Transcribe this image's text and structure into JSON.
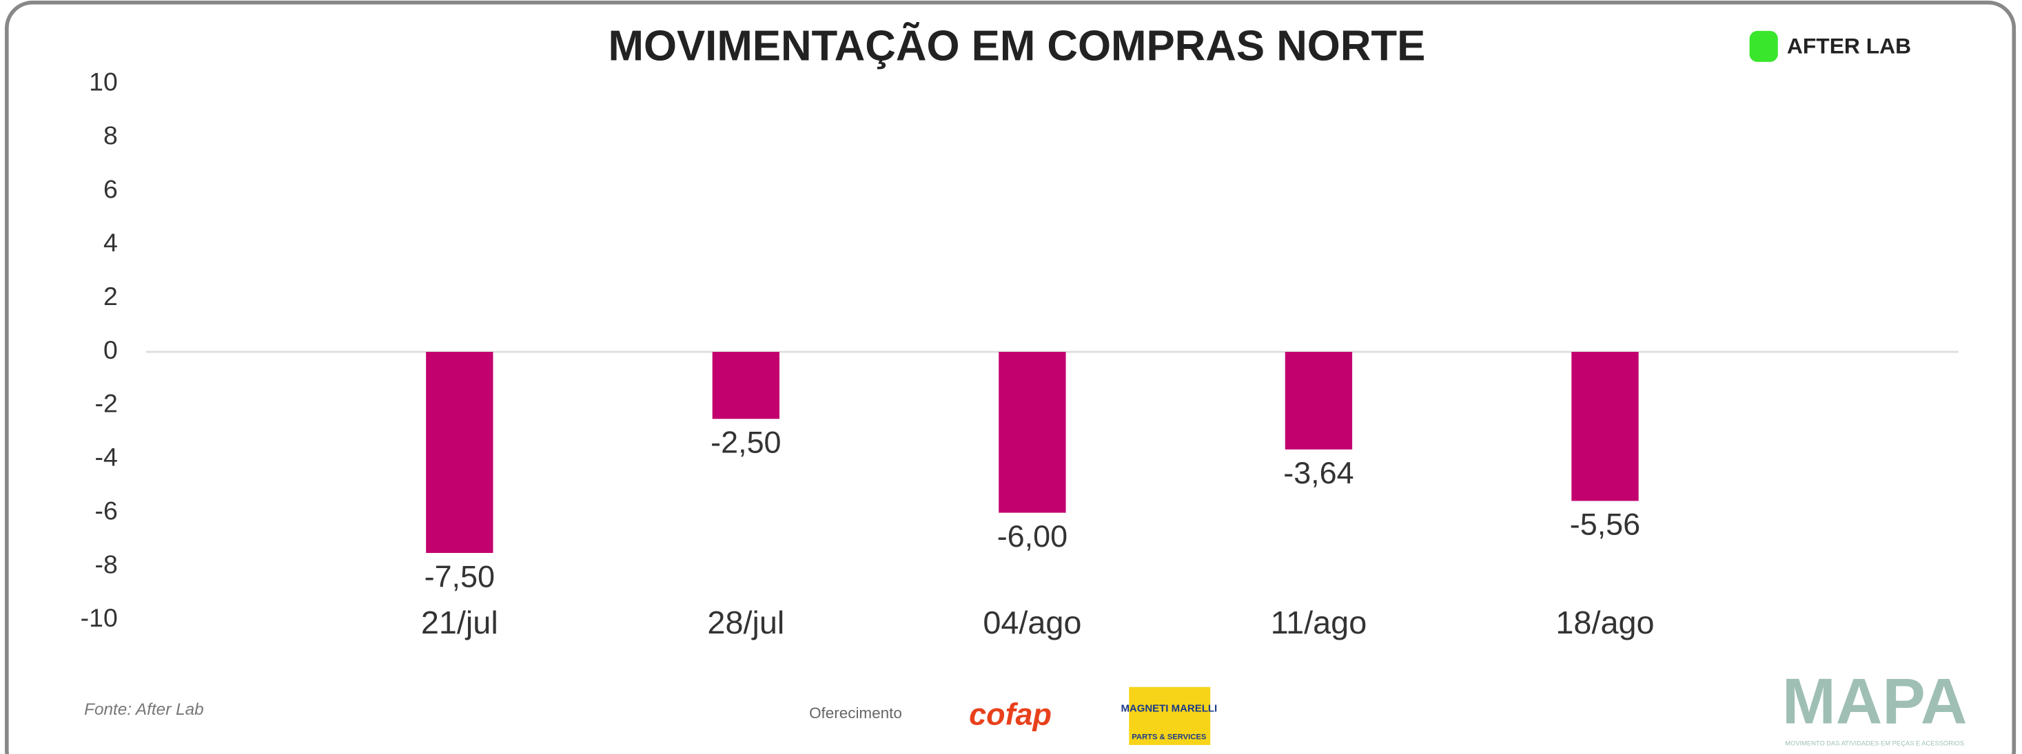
{
  "chart_data": {
    "type": "bar",
    "title": "MOVIMENTAÇÃO EM COMPRAS NORTE",
    "categories": [
      "21/jul",
      "28/jul",
      "04/ago",
      "11/ago",
      "18/ago"
    ],
    "values": [
      -7.5,
      -2.5,
      -6.0,
      -3.64,
      -5.56
    ],
    "value_labels": [
      "-7,50",
      "-2,50",
      "-6,00",
      "-3,64",
      "-5,56"
    ],
    "color": "#c2006e",
    "ylim": [
      -10,
      10
    ],
    "yticks": [
      10,
      8,
      6,
      4,
      2,
      0,
      -2,
      -4,
      -6,
      -8,
      -10
    ]
  },
  "header": {
    "logo": "AFTER LAB"
  },
  "footer": {
    "source": "Fonte: After Lab",
    "sponsor_label": "Oferecimento",
    "brand_1": "cofap",
    "brand_2": "MAGNETI MARELLI",
    "brand_2_sub": "PARTS & SERVICES",
    "brand_3": "MAPA",
    "brand_3_sub": "MOVIMENTO DAS ATIVIDADES EM PEÇAS E ACESSÓRIOS"
  }
}
